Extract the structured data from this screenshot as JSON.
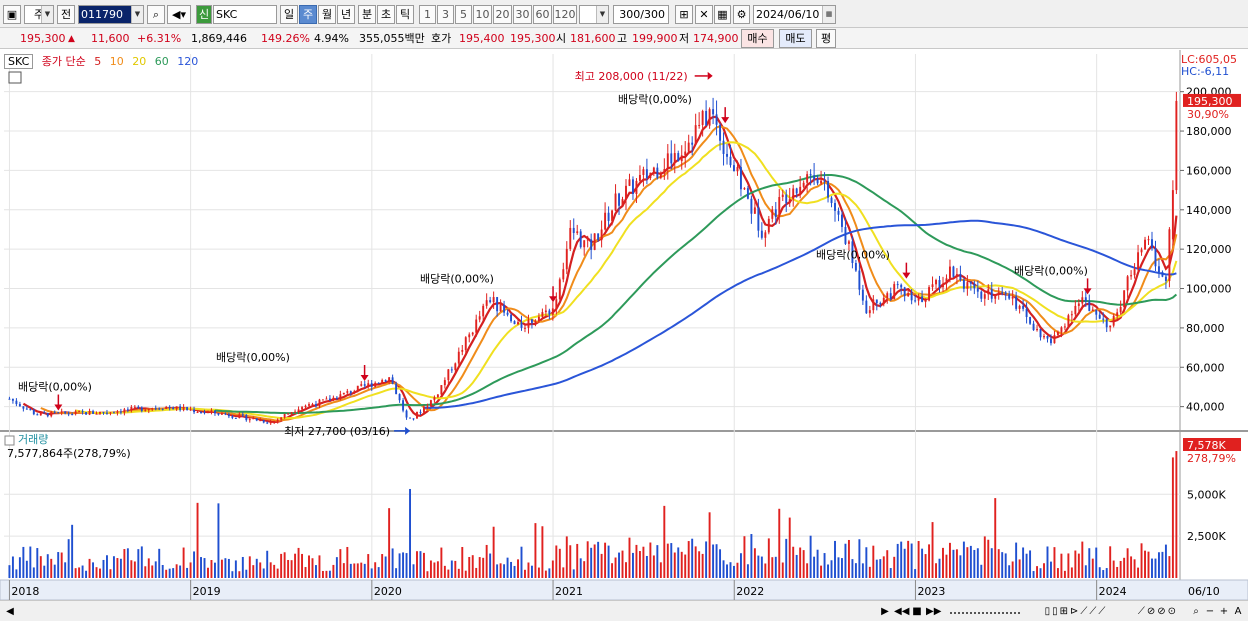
{
  "toolbar": {
    "period_label": "주",
    "jeon_label": "전",
    "code_value": "011790",
    "name_value": "SKC",
    "sin_label": "신",
    "tabs": [
      "일",
      "주",
      "월",
      "년",
      "분",
      "초",
      "틱"
    ],
    "active_tab": 1,
    "intervals": [
      "1",
      "3",
      "5",
      "10",
      "20",
      "30",
      "60",
      "120"
    ],
    "count_value": "300",
    "count_total": "/300",
    "date_value": "2024/06/10"
  },
  "infobar": {
    "price": "195,300",
    "change": "11,600",
    "change_pct": "+6.31%",
    "volume": "1,869,446",
    "volume_pct": "149.26%",
    "turnover_pct": "4.94%",
    "amount": "355,055백만",
    "hoga_label": "호가",
    "ask": "195,400",
    "bid": "195,300",
    "open_label": "시",
    "open": "181,600",
    "high_label": "고",
    "high": "199,900",
    "low_label": "저",
    "low": "174,900",
    "buy_button": "매수",
    "sell_button": "매도",
    "eval_button": "평"
  },
  "legend": {
    "name": "SKC",
    "desc": "종가 단순",
    "periods": [
      "5",
      "10",
      "20",
      "60",
      "120"
    ],
    "period_colors": [
      "#d42020",
      "#f08c1a",
      "#f0e020",
      "#2e9a5a",
      "#2a55d8"
    ]
  },
  "price_panel": {
    "lc_label": "LC:605,05",
    "hc_label": "HC:-6,11",
    "current_price": "195,300",
    "current_pct": "30,90%",
    "y_ticks": [
      "200,000",
      "180,000",
      "160,000",
      "140,000",
      "120,000",
      "100,000",
      "80,000",
      "60,000",
      "40,000"
    ],
    "annotations": {
      "high": "최고 208,000 (11/22)",
      "low": "최저 27,700 (03/16)",
      "dividend": "배당락(0,00%)"
    }
  },
  "volume_panel": {
    "title": "거래량",
    "value_text": "7,577,864주(278,79%)",
    "current_volume": "7,578K",
    "current_pct": "278,79%",
    "y_ticks": [
      "5,000K",
      "2,500K"
    ]
  },
  "x_axis": {
    "years": [
      "2018",
      "2019",
      "2020",
      "2021",
      "2022",
      "2023",
      "2024"
    ],
    "end_label": "06/10"
  },
  "chart_data": {
    "type": "candlestick",
    "title": "SKC",
    "price_range": [
      20000,
      210000
    ],
    "volume_range": [
      0,
      8000000
    ],
    "key_values": {
      "all_time_high": 208000,
      "all_time_high_date": "11/22",
      "all_time_low": 27700,
      "all_time_low_date": "03/16",
      "last_close": 195300,
      "last_volume": 7577864
    },
    "close_anchors": [
      {
        "year": 2018.0,
        "price": 44000
      },
      {
        "year": 2018.15,
        "price": 36000
      },
      {
        "year": 2018.5,
        "price": 37000
      },
      {
        "year": 2018.85,
        "price": 40000
      },
      {
        "year": 2019.2,
        "price": 36000
      },
      {
        "year": 2019.45,
        "price": 32000
      },
      {
        "year": 2019.6,
        "price": 40000
      },
      {
        "year": 2019.75,
        "price": 43000
      },
      {
        "year": 2019.95,
        "price": 50000
      },
      {
        "year": 2020.1,
        "price": 55000
      },
      {
        "year": 2020.2,
        "price": 32000
      },
      {
        "year": 2020.35,
        "price": 45000
      },
      {
        "year": 2020.5,
        "price": 70000
      },
      {
        "year": 2020.65,
        "price": 95000
      },
      {
        "year": 2020.8,
        "price": 80000
      },
      {
        "year": 2021.0,
        "price": 90000
      },
      {
        "year": 2021.1,
        "price": 130000
      },
      {
        "year": 2021.2,
        "price": 120000
      },
      {
        "year": 2021.35,
        "price": 145000
      },
      {
        "year": 2021.55,
        "price": 160000
      },
      {
        "year": 2021.7,
        "price": 170000
      },
      {
        "year": 2021.87,
        "price": 190000
      },
      {
        "year": 2022.0,
        "price": 160000
      },
      {
        "year": 2022.15,
        "price": 130000
      },
      {
        "year": 2022.3,
        "price": 150000
      },
      {
        "year": 2022.45,
        "price": 160000
      },
      {
        "year": 2022.6,
        "price": 130000
      },
      {
        "year": 2022.73,
        "price": 90000
      },
      {
        "year": 2022.9,
        "price": 100000
      },
      {
        "year": 2023.0,
        "price": 92000
      },
      {
        "year": 2023.2,
        "price": 110000
      },
      {
        "year": 2023.35,
        "price": 95000
      },
      {
        "year": 2023.5,
        "price": 100000
      },
      {
        "year": 2023.65,
        "price": 80000
      },
      {
        "year": 2023.75,
        "price": 72000
      },
      {
        "year": 2023.9,
        "price": 95000
      },
      {
        "year": 2024.0,
        "price": 88000
      },
      {
        "year": 2024.08,
        "price": 80000
      },
      {
        "year": 2024.2,
        "price": 110000
      },
      {
        "year": 2024.28,
        "price": 125000
      },
      {
        "year": 2024.38,
        "price": 100000
      },
      {
        "year": 2024.44,
        "price": 195300
      }
    ]
  }
}
